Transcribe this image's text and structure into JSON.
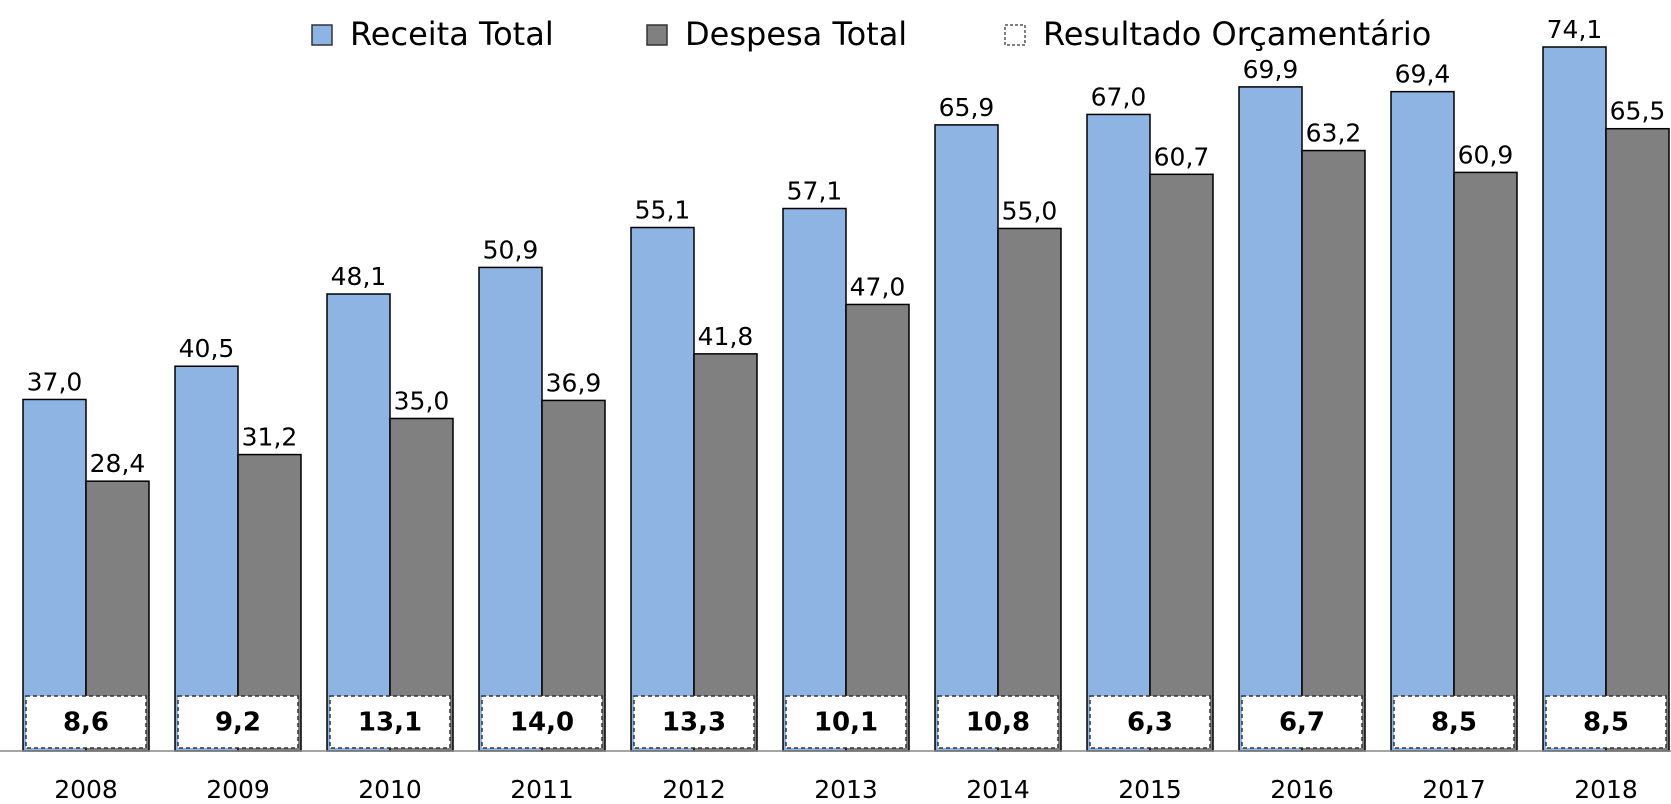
{
  "chart_data": {
    "type": "bar",
    "categories": [
      "2008",
      "2009",
      "2010",
      "2011",
      "2012",
      "2013",
      "2014",
      "2015",
      "2016",
      "2017",
      "2018"
    ],
    "series": [
      {
        "name": "Receita Total",
        "color": "#8eb4e3",
        "values": [
          37.0,
          40.5,
          48.1,
          50.9,
          55.1,
          57.1,
          65.9,
          67.0,
          69.9,
          69.4,
          74.1
        ],
        "value_labels": [
          "37,0",
          "40,5",
          "48,1",
          "50,9",
          "55,1",
          "57,1",
          "65,9",
          "67,0",
          "69,9",
          "69,4",
          "74,1"
        ]
      },
      {
        "name": "Despesa Total",
        "color": "#808080",
        "values": [
          28.4,
          31.2,
          35.0,
          36.9,
          41.8,
          47.0,
          55.0,
          60.7,
          63.2,
          60.9,
          65.5
        ],
        "value_labels": [
          "28,4",
          "31,2",
          "35,0",
          "36,9",
          "41,8",
          "47,0",
          "55,0",
          "60,7",
          "63,2",
          "60,9",
          "65,5"
        ]
      },
      {
        "name": "Resultado Orçamentário",
        "color": "#ffffff",
        "values": [
          8.6,
          9.2,
          13.1,
          14.0,
          13.3,
          10.1,
          10.8,
          6.3,
          6.7,
          8.5,
          8.5
        ],
        "value_labels": [
          "8,6",
          "9,2",
          "13,1",
          "14,0",
          "13,3",
          "10,1",
          "10,8",
          "6,3",
          "6,7",
          "8,5",
          "8,5"
        ]
      }
    ]
  }
}
